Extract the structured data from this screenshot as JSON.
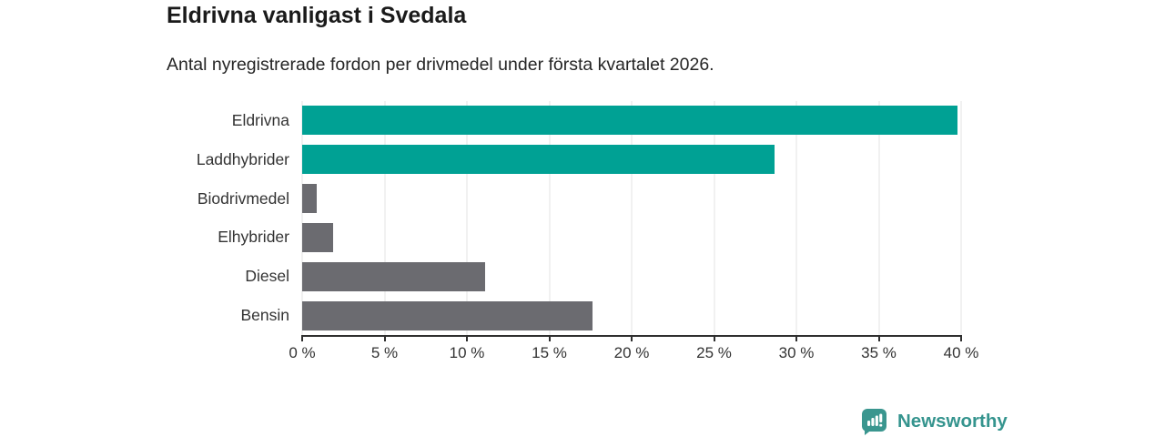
{
  "header": {
    "title": "Eldrivna vanligast i Svedala",
    "subtitle": "Antal nyregistrerade fordon per drivmedel under första kvartalet 2026."
  },
  "chart_data": {
    "type": "bar",
    "orientation": "horizontal",
    "title": "Eldrivna vanligast i Svedala",
    "subtitle": "Antal nyregistrerade fordon per drivmedel under första kvartalet 2026.",
    "categories": [
      "Eldrivna",
      "Laddhybrider",
      "Biodrivmedel",
      "Elhybrider",
      "Diesel",
      "Bensin"
    ],
    "values": [
      39.8,
      28.7,
      0.9,
      1.9,
      11.1,
      17.6
    ],
    "bar_colors": [
      "#00a194",
      "#00a194",
      "#6b6b70",
      "#6b6b70",
      "#6b6b70",
      "#6b6b70"
    ],
    "xlabel": "",
    "ylabel": "",
    "xlim": [
      0,
      40
    ],
    "x_tick_values": [
      0,
      5,
      10,
      15,
      20,
      25,
      30,
      35,
      40
    ],
    "x_tick_labels": [
      "0 %",
      "5 %",
      "10 %",
      "15 %",
      "20 %",
      "25 %",
      "30 %",
      "35 %",
      "40 %"
    ],
    "grid": true,
    "legend": false,
    "accent_color": "#00a194",
    "neutral_color": "#6b6b70"
  },
  "footer": {
    "brand": "Newsworthy",
    "brand_color": "#35948e",
    "logo_icon": "bar-chart-speech-bubble-icon"
  }
}
